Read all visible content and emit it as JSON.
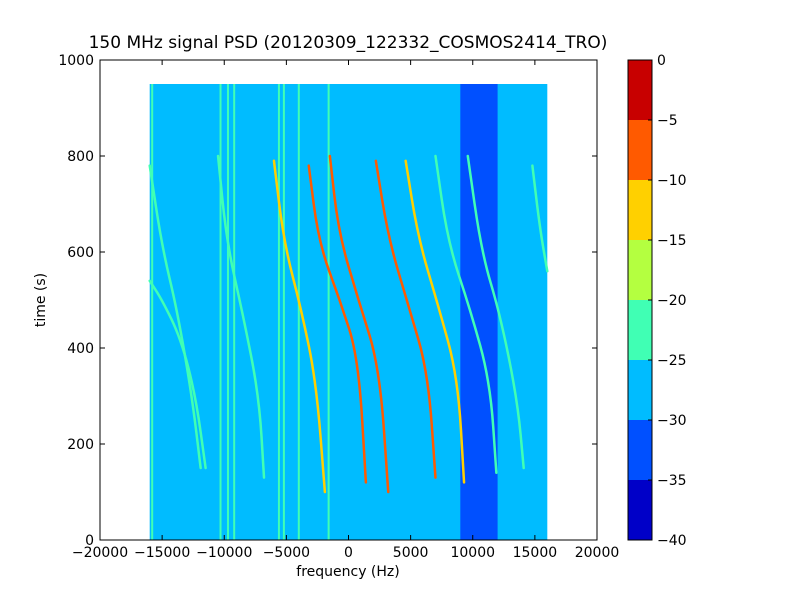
{
  "chart_data": {
    "type": "heatmap",
    "title": "150 MHz signal PSD (20120309_122332_COSMOS2414_TRO)",
    "xlabel": "frequency (Hz)",
    "ylabel": "time (s)",
    "xlim": [
      -20000,
      20000
    ],
    "ylim": [
      0,
      1000
    ],
    "x_ticks": [
      -20000,
      -15000,
      -10000,
      -5000,
      0,
      5000,
      10000,
      15000,
      20000
    ],
    "x_tick_labels": [
      "−20000",
      "−15000",
      "−10000",
      "−5000",
      "0",
      "5000",
      "10000",
      "15000",
      "20000"
    ],
    "y_ticks": [
      0,
      200,
      400,
      600,
      800,
      1000
    ],
    "y_tick_labels": [
      "0",
      "200",
      "400",
      "600",
      "800",
      "1000"
    ],
    "data_extent": {
      "x": [
        -16000,
        16000
      ],
      "y": [
        0,
        950
      ]
    },
    "background_level_db": -28,
    "low_power_band": {
      "x": [
        9000,
        12000
      ],
      "level_db": -34
    },
    "colorbar": {
      "min": -40,
      "max": 0,
      "ticks": [
        0,
        -5,
        -10,
        -15,
        -20,
        -25,
        -30,
        -35,
        -40
      ],
      "tick_labels": [
        "0",
        "−5",
        "−10",
        "−15",
        "−20",
        "−25",
        "−30",
        "−35",
        "−40"
      ],
      "bands": [
        {
          "from": -40,
          "to": -35,
          "color": "#0000c8"
        },
        {
          "from": -35,
          "to": -30,
          "color": "#0050ff"
        },
        {
          "from": -30,
          "to": -25,
          "color": "#00bcff"
        },
        {
          "from": -25,
          "to": -20,
          "color": "#40ffb4"
        },
        {
          "from": -20,
          "to": -15,
          "color": "#b4ff40"
        },
        {
          "from": -15,
          "to": -10,
          "color": "#ffd000"
        },
        {
          "from": -10,
          "to": -5,
          "color": "#ff5a00"
        },
        {
          "from": -5,
          "to": 0,
          "color": "#c80000"
        }
      ]
    },
    "vertical_lines": [
      {
        "x": -15800,
        "y": [
          0,
          950
        ],
        "level_db": -22
      },
      {
        "x": -10300,
        "y": [
          0,
          950
        ],
        "level_db": -20
      },
      {
        "x": -9700,
        "y": [
          0,
          950
        ],
        "level_db": -22
      },
      {
        "x": -9200,
        "y": [
          0,
          950
        ],
        "level_db": -24
      },
      {
        "x": -5600,
        "y": [
          0,
          950
        ],
        "level_db": -22
      },
      {
        "x": -5200,
        "y": [
          0,
          950
        ],
        "level_db": -22
      },
      {
        "x": -4000,
        "y": [
          0,
          950
        ],
        "level_db": -24
      },
      {
        "x": -1600,
        "y": [
          0,
          950
        ],
        "level_db": -20
      }
    ],
    "series": [
      {
        "points": [
          [
            -16000,
            540
          ],
          [
            -15000,
            500
          ],
          [
            -13500,
            420
          ],
          [
            -12300,
            300
          ],
          [
            -11500,
            150
          ]
        ],
        "level_db": -20
      },
      {
        "points": [
          [
            -16000,
            780
          ],
          [
            -15000,
            610
          ],
          [
            -13800,
            480
          ],
          [
            -12600,
            300
          ],
          [
            -11900,
            150
          ]
        ],
        "level_db": -20
      },
      {
        "points": [
          [
            -10500,
            800
          ],
          [
            -9800,
            620
          ],
          [
            -8500,
            470
          ],
          [
            -7200,
            300
          ],
          [
            -6800,
            130
          ]
        ],
        "level_db": -20
      },
      {
        "points": [
          [
            -6000,
            790
          ],
          [
            -5200,
            620
          ],
          [
            -3800,
            480
          ],
          [
            -2600,
            330
          ],
          [
            -1900,
            100
          ]
        ],
        "level_db": -12
      },
      {
        "points": [
          [
            -3200,
            780
          ],
          [
            -2400,
            620
          ],
          [
            -700,
            500
          ],
          [
            800,
            380
          ],
          [
            1400,
            120
          ]
        ],
        "level_db": -8
      },
      {
        "points": [
          [
            -1500,
            800
          ],
          [
            -800,
            640
          ],
          [
            800,
            500
          ],
          [
            2500,
            360
          ],
          [
            3200,
            100
          ]
        ],
        "level_db": -8
      },
      {
        "points": [
          [
            2200,
            790
          ],
          [
            3200,
            630
          ],
          [
            4800,
            490
          ],
          [
            6400,
            350
          ],
          [
            7000,
            130
          ]
        ],
        "level_db": -8
      },
      {
        "points": [
          [
            4600,
            790
          ],
          [
            5600,
            630
          ],
          [
            7200,
            490
          ],
          [
            8800,
            340
          ],
          [
            9300,
            120
          ]
        ],
        "level_db": -10
      },
      {
        "points": [
          [
            7000,
            800
          ],
          [
            8000,
            620
          ],
          [
            9800,
            480
          ],
          [
            11400,
            330
          ],
          [
            11900,
            140
          ]
        ],
        "level_db": -20
      },
      {
        "points": [
          [
            9600,
            800
          ],
          [
            10700,
            600
          ],
          [
            12200,
            470
          ],
          [
            13600,
            290
          ],
          [
            14100,
            150
          ]
        ],
        "level_db": -20
      },
      {
        "points": [
          [
            14800,
            780
          ],
          [
            15400,
            650
          ],
          [
            16000,
            560
          ]
        ],
        "level_db": -20
      }
    ]
  }
}
